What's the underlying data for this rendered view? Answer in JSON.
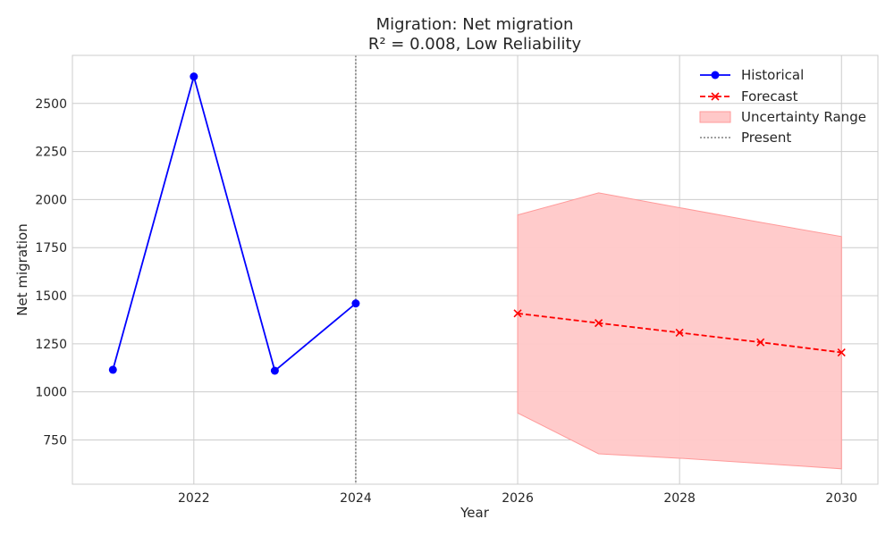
{
  "chart_data": {
    "type": "line",
    "title": "Migration: Net migration",
    "subtitle": "R² = 0.008, Low Reliability",
    "xlabel": "Year",
    "ylabel": "Net migration",
    "xlim": [
      2020.5,
      2030.45
    ],
    "ylim": [
      520,
      2750
    ],
    "xticks": [
      2022,
      2024,
      2026,
      2028,
      2030
    ],
    "yticks": [
      750,
      1000,
      1250,
      1500,
      1750,
      2000,
      2250,
      2500
    ],
    "grid": true,
    "legend_position": "top-right",
    "present_year": 2024,
    "series": [
      {
        "name": "Historical",
        "color": "#0000ff",
        "marker": "circle",
        "line_style": "solid",
        "x": [
          2021,
          2022,
          2023,
          2024
        ],
        "y": [
          1115,
          2640,
          1110,
          1460
        ]
      },
      {
        "name": "Forecast",
        "color": "#ff0000",
        "marker": "x",
        "line_style": "dashed",
        "x": [
          2026,
          2027,
          2028,
          2029,
          2030
        ],
        "y": [
          1408,
          1358,
          1308,
          1258,
          1205
        ]
      }
    ],
    "uncertainty": {
      "name": "Uncertainty Range",
      "color": "#ffc8c8",
      "x": [
        2026,
        2027,
        2028,
        2029,
        2030
      ],
      "lower": [
        890,
        678,
        655,
        628,
        600
      ],
      "upper": [
        1920,
        2035,
        1958,
        1882,
        1808
      ]
    },
    "present_line": {
      "name": "Present",
      "color": "#808080"
    }
  }
}
